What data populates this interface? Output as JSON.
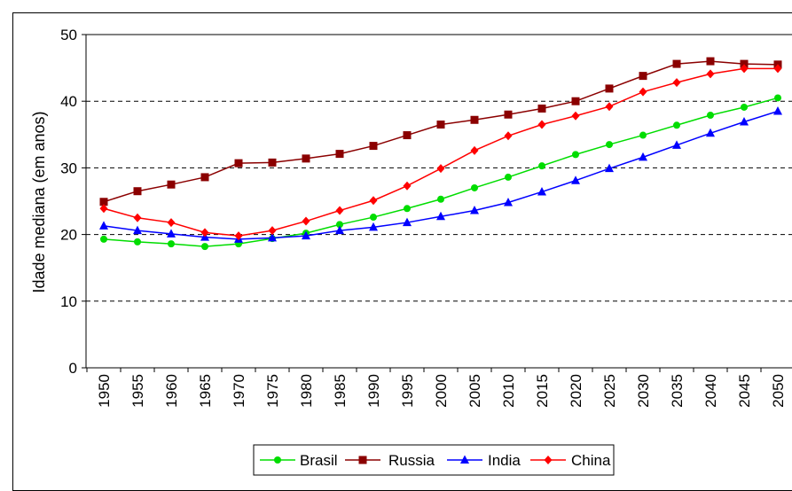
{
  "chart_data": {
    "type": "line",
    "title": "",
    "xlabel": "",
    "ylabel": "Idade mediana (em anos)",
    "ylim": [
      0,
      50
    ],
    "yticks": [
      0,
      10,
      20,
      30,
      40,
      50
    ],
    "grid": "horizontal-dashed",
    "legend_position": "bottom",
    "x": [
      "1950",
      "1955",
      "1960",
      "1965",
      "1970",
      "1975",
      "1980",
      "1985",
      "1990",
      "1995",
      "2000",
      "2005",
      "2010",
      "2015",
      "2020",
      "2025",
      "2030",
      "2035",
      "2040",
      "2045",
      "2050"
    ],
    "series": [
      {
        "name": "Brasil",
        "color": "#00dd00",
        "marker": "circle",
        "values": [
          19.3,
          18.9,
          18.6,
          18.2,
          18.6,
          19.4,
          20.2,
          21.5,
          22.6,
          23.9,
          25.3,
          27.0,
          28.6,
          30.3,
          32.0,
          33.5,
          34.9,
          36.4,
          37.9,
          39.1,
          40.5
        ]
      },
      {
        "name": "Russia",
        "color": "#8b0000",
        "marker": "square",
        "values": [
          24.9,
          26.5,
          27.5,
          28.6,
          30.7,
          30.8,
          31.4,
          32.1,
          33.3,
          34.9,
          36.5,
          37.2,
          38.0,
          38.9,
          40.0,
          41.9,
          43.8,
          45.6,
          46.0,
          45.6,
          45.5
        ]
      },
      {
        "name": "India",
        "color": "#0000ff",
        "marker": "triangle",
        "values": [
          21.3,
          20.6,
          20.1,
          19.6,
          19.3,
          19.5,
          19.8,
          20.6,
          21.1,
          21.8,
          22.7,
          23.6,
          24.8,
          26.4,
          28.1,
          29.9,
          31.6,
          33.4,
          35.2,
          36.9,
          38.5
        ]
      },
      {
        "name": "China",
        "color": "#ff0000",
        "marker": "diamond",
        "values": [
          23.9,
          22.5,
          21.8,
          20.3,
          19.8,
          20.6,
          22.0,
          23.6,
          25.1,
          27.3,
          29.9,
          32.6,
          34.8,
          36.5,
          37.8,
          39.2,
          41.4,
          42.8,
          44.1,
          44.9,
          44.9
        ]
      }
    ]
  }
}
